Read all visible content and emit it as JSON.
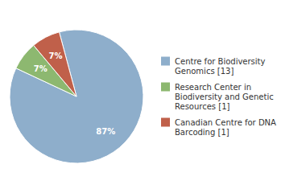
{
  "chart_data": {
    "type": "pie",
    "categories": [
      "Centre for Biodiversity\nGenomics [13]",
      "Research Center in\nBiodiversity and Genetic\nResources [1]",
      "Canadian Centre for DNA\nBarcoding [1]"
    ],
    "values": [
      87,
      7,
      7
    ],
    "value_labels": [
      "87%",
      "7%",
      "7%"
    ],
    "colors": [
      "#8eaecb",
      "#8db870",
      "#c0604a"
    ],
    "data_labels": true,
    "legend": "right"
  }
}
